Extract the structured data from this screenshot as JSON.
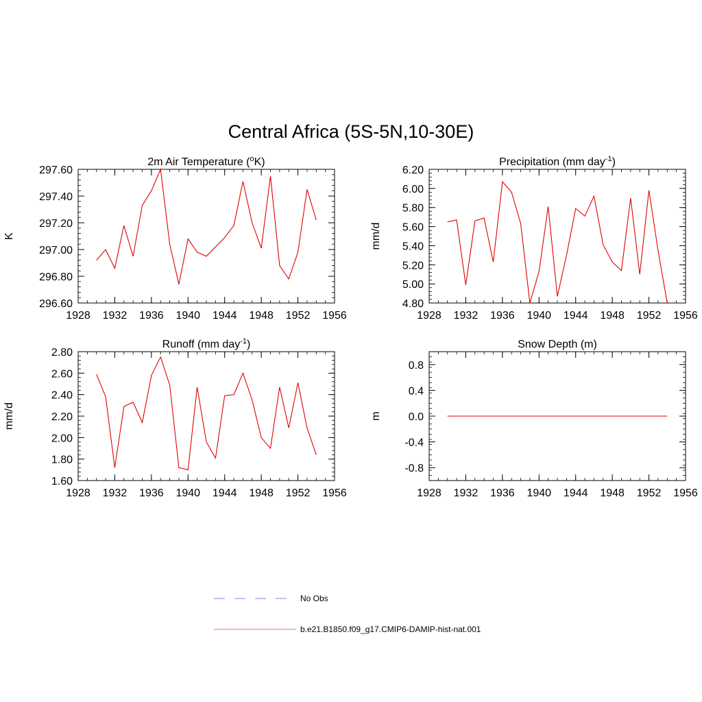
{
  "figure": {
    "title": "Central Africa (5S-5N,10-30E)"
  },
  "legend": {
    "entries": [
      {
        "label": "No Obs",
        "color": "#9999ff",
        "style": "dashed"
      },
      {
        "label": "b.e21.B1850.f09_g17.CMIP6-DAMIP-hist-nat.001",
        "color": "#ff8080",
        "style": "solid"
      }
    ]
  },
  "chart_data": [
    {
      "type": "line",
      "title": "2m Air Temperature (",
      "title_sup": "o",
      "title_suffix": "K)",
      "ylabel": "K",
      "xlim": [
        1928,
        1956
      ],
      "ylim": [
        296.6,
        297.6
      ],
      "x_ticks": [
        1928,
        1932,
        1936,
        1940,
        1944,
        1948,
        1952,
        1956
      ],
      "x_tick_labels": [
        "1928",
        "1932",
        "1936",
        "1940",
        "1944",
        "1948",
        "1952",
        "1956"
      ],
      "y_ticks": [
        296.6,
        296.8,
        297.0,
        297.2,
        297.4,
        297.6
      ],
      "y_tick_labels": [
        "296.60",
        "296.80",
        "297.00",
        "297.20",
        "297.40",
        "297.60"
      ],
      "series": [
        {
          "color": "#e00000",
          "x": [
            1930,
            1931,
            1932,
            1933,
            1934,
            1935,
            1936,
            1937,
            1938,
            1939,
            1940,
            1941,
            1942,
            1943,
            1944,
            1945,
            1946,
            1947,
            1948,
            1949,
            1950,
            1951,
            1952,
            1953,
            1954
          ],
          "y": [
            296.92,
            297.0,
            296.86,
            297.18,
            296.95,
            297.33,
            297.44,
            297.6,
            297.04,
            296.74,
            297.08,
            296.98,
            296.95,
            297.02,
            297.09,
            297.18,
            297.51,
            297.2,
            297.01,
            297.55,
            296.88,
            296.78,
            296.98,
            297.45,
            297.22
          ]
        }
      ]
    },
    {
      "type": "line",
      "title": "Precipitation (mm day",
      "title_sup": "-1",
      "title_suffix": ")",
      "ylabel": "mm/d",
      "xlim": [
        1928,
        1956
      ],
      "ylim": [
        4.8,
        6.2
      ],
      "x_ticks": [
        1928,
        1932,
        1936,
        1940,
        1944,
        1948,
        1952,
        1956
      ],
      "x_tick_labels": [
        "1928",
        "1932",
        "1936",
        "1940",
        "1944",
        "1948",
        "1952",
        "1956"
      ],
      "y_ticks": [
        4.8,
        5.0,
        5.2,
        5.4,
        5.6,
        5.8,
        6.0,
        6.2
      ],
      "y_tick_labels": [
        "4.80",
        "5.00",
        "5.20",
        "5.40",
        "5.60",
        "5.80",
        "6.00",
        "6.20"
      ],
      "series": [
        {
          "color": "#e00000",
          "x": [
            1930,
            1931,
            1932,
            1933,
            1934,
            1935,
            1936,
            1937,
            1938,
            1939,
            1940,
            1941,
            1942,
            1943,
            1944,
            1945,
            1946,
            1947,
            1948,
            1949,
            1950,
            1951,
            1952,
            1953,
            1954
          ],
          "y": [
            5.65,
            5.67,
            4.99,
            5.66,
            5.69,
            5.23,
            6.07,
            5.96,
            5.63,
            4.8,
            5.13,
            5.81,
            4.87,
            5.3,
            5.79,
            5.71,
            5.92,
            5.41,
            5.23,
            5.14,
            5.9,
            5.1,
            5.98,
            5.35,
            4.8
          ]
        }
      ]
    },
    {
      "type": "line",
      "title": "Runoff (mm day",
      "title_sup": "-1",
      "title_suffix": ")",
      "ylabel": "mm/d",
      "xlim": [
        1928,
        1956
      ],
      "ylim": [
        1.6,
        2.8
      ],
      "x_ticks": [
        1928,
        1932,
        1936,
        1940,
        1944,
        1948,
        1952,
        1956
      ],
      "x_tick_labels": [
        "1928",
        "1932",
        "1936",
        "1940",
        "1944",
        "1948",
        "1952",
        "1956"
      ],
      "y_ticks": [
        1.6,
        1.8,
        2.0,
        2.2,
        2.4,
        2.6,
        2.8
      ],
      "y_tick_labels": [
        "1.60",
        "1.80",
        "2.00",
        "2.20",
        "2.40",
        "2.60",
        "2.80"
      ],
      "series": [
        {
          "color": "#e00000",
          "x": [
            1930,
            1931,
            1932,
            1933,
            1934,
            1935,
            1936,
            1937,
            1938,
            1939,
            1940,
            1941,
            1942,
            1943,
            1944,
            1945,
            1946,
            1947,
            1948,
            1949,
            1950,
            1951,
            1952,
            1953,
            1954
          ],
          "y": [
            2.59,
            2.38,
            1.72,
            2.29,
            2.33,
            2.14,
            2.58,
            2.75,
            2.49,
            1.72,
            1.7,
            2.47,
            1.96,
            1.81,
            2.39,
            2.4,
            2.6,
            2.35,
            2.0,
            1.9,
            2.47,
            2.09,
            2.51,
            2.09,
            1.84
          ]
        }
      ]
    },
    {
      "type": "line",
      "title": "Snow Depth (m)",
      "title_sup": "",
      "title_suffix": "",
      "ylabel": "m",
      "xlim": [
        1928,
        1956
      ],
      "ylim": [
        -1.0,
        1.0
      ],
      "x_ticks": [
        1928,
        1932,
        1936,
        1940,
        1944,
        1948,
        1952,
        1956
      ],
      "x_tick_labels": [
        "1928",
        "1932",
        "1936",
        "1940",
        "1944",
        "1948",
        "1952",
        "1956"
      ],
      "y_ticks": [
        -0.8,
        -0.4,
        0.0,
        0.4,
        0.8
      ],
      "y_tick_labels": [
        "-0.8",
        "-0.4",
        "0.0",
        "0.4",
        "0.8"
      ],
      "series": [
        {
          "color": "#e00000",
          "x": [
            1930,
            1954
          ],
          "y": [
            0.0,
            0.0
          ]
        }
      ]
    }
  ]
}
